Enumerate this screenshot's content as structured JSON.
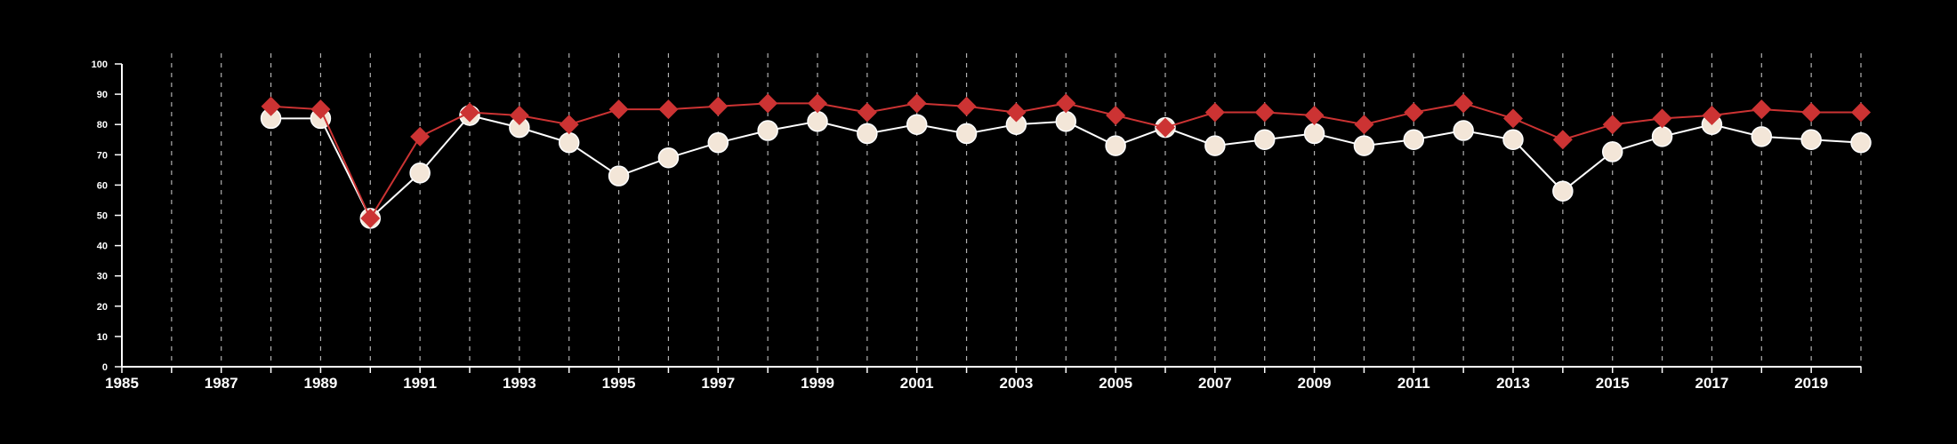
{
  "colors": {
    "background": "#000000",
    "axis": "#ffffff",
    "grid": "#b0b0b0",
    "series_a_line": "#ffffff",
    "series_a_marker": "#f3e6d8",
    "series_b": "#cc3333"
  },
  "chart_data": {
    "type": "line",
    "title": "",
    "xlabel": "",
    "ylabel": "",
    "xlim": [
      1985,
      2020
    ],
    "ylim": [
      0,
      100
    ],
    "x_ticks_major": [
      1985,
      1987,
      1989,
      1991,
      1993,
      1995,
      1997,
      1999,
      2001,
      2003,
      2005,
      2007,
      2009,
      2011,
      2013,
      2015,
      2017,
      2019
    ],
    "y_ticks": [
      0,
      10,
      20,
      30,
      40,
      50,
      60,
      70,
      80,
      90,
      100
    ],
    "grid": "vertical dashed at every year",
    "x": [
      1988,
      1989,
      1990,
      1991,
      1992,
      1993,
      1994,
      1995,
      1996,
      1997,
      1998,
      1999,
      2000,
      2001,
      2002,
      2003,
      2004,
      2005,
      2006,
      2007,
      2008,
      2009,
      2010,
      2011,
      2012,
      2013,
      2014,
      2015,
      2016,
      2017,
      2018,
      2019,
      2020
    ],
    "series": [
      {
        "marker": "circle",
        "values": [
          82,
          82,
          49,
          64,
          83,
          79,
          74,
          63,
          69,
          74,
          78,
          81,
          77,
          80,
          77,
          80,
          81,
          73,
          79,
          73,
          75,
          77,
          73,
          75,
          78,
          75,
          58,
          71,
          76,
          80,
          76,
          75,
          74
        ]
      },
      {
        "marker": "diamond",
        "values": [
          86,
          85,
          49,
          76,
          84,
          83,
          80,
          85,
          85,
          86,
          87,
          87,
          84,
          87,
          86,
          84,
          87,
          83,
          79,
          84,
          84,
          83,
          80,
          84,
          87,
          82,
          75,
          80,
          82,
          83,
          85,
          84,
          84
        ]
      }
    ]
  }
}
